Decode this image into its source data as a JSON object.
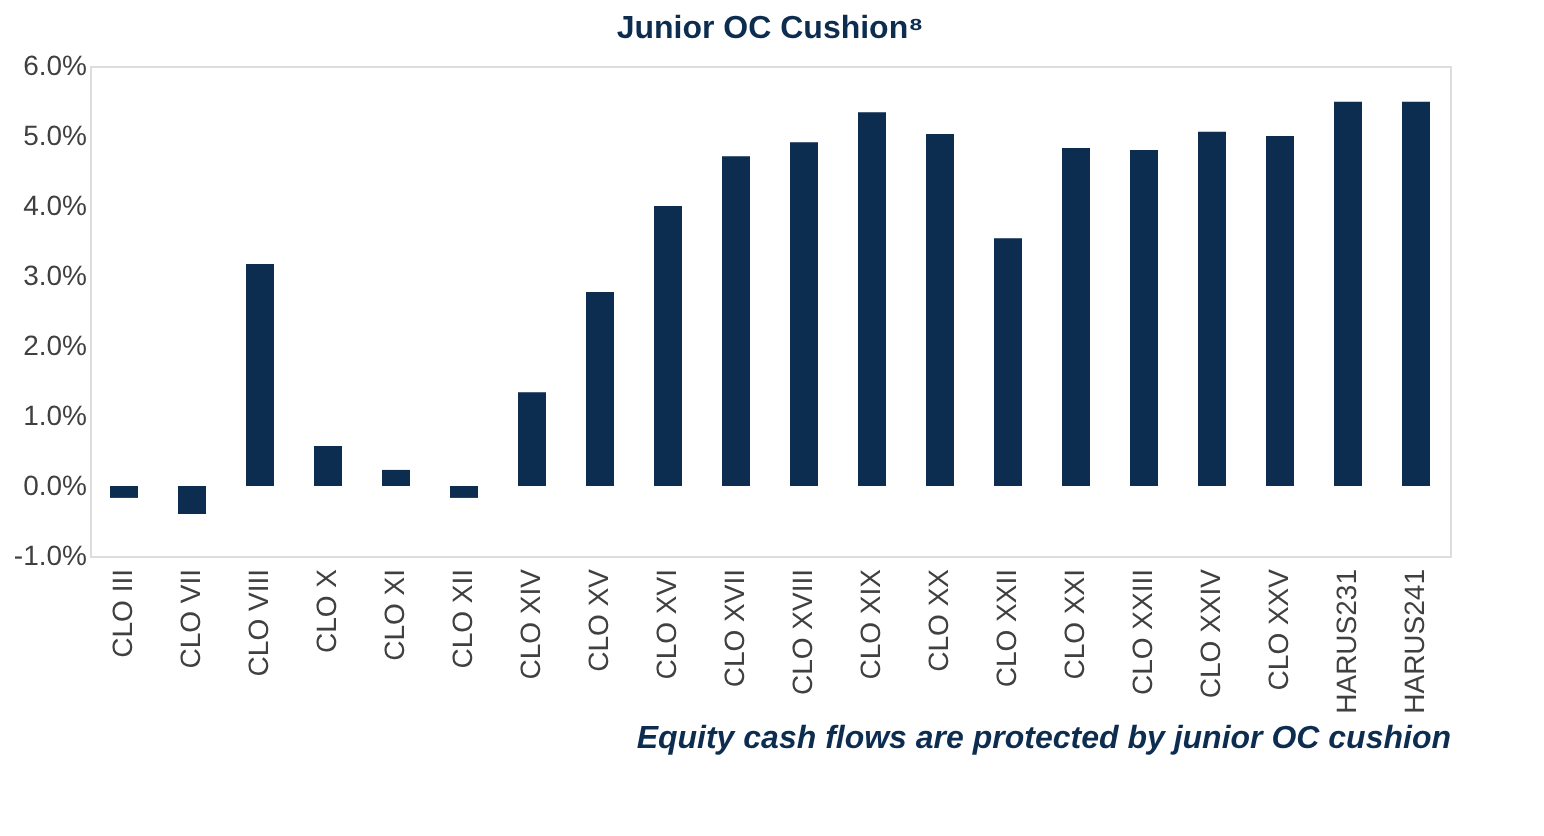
{
  "chart_data": {
    "type": "bar",
    "title": "Junior OC Cushion⁸",
    "categories": [
      "CLO III",
      "CLO VII",
      "CLO VIII",
      "CLO X",
      "CLO XI",
      "CLO XII",
      "CLO XIV",
      "CLO XV",
      "CLO XVI",
      "CLO XVII",
      "CLO XVIII",
      "CLO XIX",
      "CLO XX",
      "CLO XXII",
      "CLO XXI",
      "CLO XXIII",
      "CLO XXIV",
      "CLO XXV",
      "HARUS231",
      "HARUS241"
    ],
    "values": [
      -0.17,
      -0.4,
      3.17,
      0.57,
      0.23,
      -0.17,
      1.34,
      2.77,
      4.0,
      4.71,
      4.91,
      5.34,
      5.03,
      3.54,
      4.83,
      4.8,
      5.06,
      5.0,
      5.49,
      5.49
    ],
    "color": "#0d2d50",
    "ylim": [
      -1,
      6
    ],
    "yticks": [
      {
        "value": -1,
        "label": "-1.0%"
      },
      {
        "value": 0,
        "label": "0.0%"
      },
      {
        "value": 1,
        "label": "1.0%"
      },
      {
        "value": 2,
        "label": "2.0%"
      },
      {
        "value": 3,
        "label": "3.0%"
      },
      {
        "value": 4,
        "label": "4.0%"
      },
      {
        "value": 5,
        "label": "5.0%"
      },
      {
        "value": 6,
        "label": "6.0%"
      }
    ],
    "grid": false,
    "annotations": [
      "Equity cash flows are protected by junior OC cushion"
    ]
  }
}
